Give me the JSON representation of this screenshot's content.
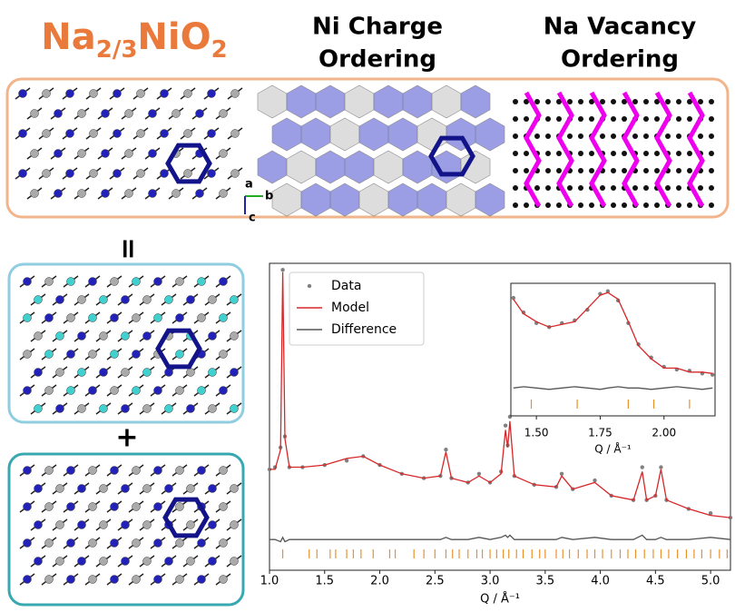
{
  "headings": {
    "formula": [
      "Na",
      "2/3",
      "NiO",
      "2"
    ],
    "charge": [
      "Ni Charge",
      "Ordering"
    ],
    "vacancy": [
      "Na Vacancy",
      "Ordering"
    ]
  },
  "symbols": {
    "equals": "=",
    "plus": "+"
  },
  "axes_labels": [
    "a",
    "b",
    "c"
  ],
  "chart_data": [
    {
      "type": "line",
      "xlabel": "Q / Å⁻¹",
      "xlim": [
        1.0,
        5.18
      ],
      "ylim": [
        -0.4,
        1.0
      ],
      "xticks": [
        {
          "value": 1.0,
          "label": "1.0"
        },
        {
          "value": 1.5,
          "label": "1.5"
        },
        {
          "value": 2.0,
          "label": "2.0"
        },
        {
          "value": 2.5,
          "label": "2.5"
        },
        {
          "value": 3.0,
          "label": "3.0"
        },
        {
          "value": 3.5,
          "label": "3.5"
        },
        {
          "value": 4.0,
          "label": "4.0"
        },
        {
          "value": 4.5,
          "label": "4.5"
        },
        {
          "value": 5.0,
          "label": "5.0"
        }
      ],
      "legend": "upper left",
      "x": [
        1.0,
        1.05,
        1.1,
        1.12,
        1.14,
        1.18,
        1.3,
        1.5,
        1.7,
        1.85,
        2.0,
        2.2,
        2.4,
        2.55,
        2.6,
        2.65,
        2.8,
        2.9,
        3.0,
        3.1,
        3.14,
        3.16,
        3.18,
        3.22,
        3.4,
        3.6,
        3.65,
        3.75,
        3.95,
        4.1,
        4.3,
        4.38,
        4.42,
        4.5,
        4.55,
        4.6,
        4.8,
        5.0,
        5.18
      ],
      "series": [
        {
          "name": "Data",
          "color": "#808080",
          "style": "markers",
          "values": [
            0.06,
            0.07,
            0.16,
            0.97,
            0.21,
            0.07,
            0.07,
            0.08,
            0.1,
            0.12,
            0.08,
            0.04,
            0.02,
            0.03,
            0.15,
            0.02,
            0.0,
            0.04,
            0.0,
            0.05,
            0.26,
            0.17,
            0.3,
            0.03,
            -0.01,
            -0.02,
            0.04,
            -0.03,
            0.01,
            -0.06,
            -0.08,
            0.07,
            -0.08,
            -0.06,
            0.07,
            -0.08,
            -0.12,
            -0.14,
            -0.16
          ]
        },
        {
          "name": "Model",
          "color": "#d62728",
          "style": "line",
          "values": [
            0.06,
            0.06,
            0.15,
            0.96,
            0.2,
            0.07,
            0.07,
            0.08,
            0.11,
            0.12,
            0.08,
            0.04,
            0.02,
            0.03,
            0.14,
            0.02,
            0.0,
            0.03,
            0.0,
            0.04,
            0.24,
            0.16,
            0.28,
            0.03,
            -0.01,
            -0.02,
            0.03,
            -0.03,
            0.0,
            -0.06,
            -0.08,
            0.05,
            -0.08,
            -0.06,
            0.06,
            -0.08,
            -0.12,
            -0.15,
            -0.16
          ]
        },
        {
          "name": "Difference",
          "color": "#555555",
          "style": "line",
          "values": [
            -0.26,
            -0.26,
            -0.27,
            -0.25,
            -0.27,
            -0.26,
            -0.26,
            -0.26,
            -0.26,
            -0.26,
            -0.26,
            -0.26,
            -0.26,
            -0.26,
            -0.25,
            -0.26,
            -0.26,
            -0.25,
            -0.26,
            -0.25,
            -0.24,
            -0.25,
            -0.24,
            -0.26,
            -0.26,
            -0.26,
            -0.25,
            -0.26,
            -0.25,
            -0.26,
            -0.26,
            -0.24,
            -0.26,
            -0.26,
            -0.25,
            -0.26,
            -0.26,
            -0.25,
            -0.26
          ]
        }
      ],
      "reflections": {
        "color": "#e8912b",
        "x": [
          1.12,
          1.36,
          1.43,
          1.55,
          1.6,
          1.7,
          1.76,
          1.83,
          1.94,
          2.09,
          2.14,
          2.31,
          2.4,
          2.5,
          2.6,
          2.66,
          2.72,
          2.8,
          2.88,
          2.93,
          3.0,
          3.06,
          3.12,
          3.17,
          3.24,
          3.3,
          3.38,
          3.45,
          3.5,
          3.6,
          3.66,
          3.72,
          3.8,
          3.88,
          3.95,
          4.02,
          4.1,
          4.18,
          4.25,
          4.32,
          4.4,
          4.48,
          4.55,
          4.62,
          4.7,
          4.78,
          4.85,
          4.92,
          5.0,
          5.08,
          5.15
        ]
      }
    },
    {
      "type": "line",
      "xlabel": "Q / Å⁻¹",
      "xlim": [
        1.4,
        2.2
      ],
      "ylim": [
        0,
        1
      ],
      "xticks": [
        {
          "value": 1.5,
          "label": "1.50"
        },
        {
          "value": 1.75,
          "label": "1.75"
        },
        {
          "value": 2.0,
          "label": "2.00"
        }
      ],
      "x": [
        1.41,
        1.45,
        1.5,
        1.55,
        1.6,
        1.65,
        1.7,
        1.75,
        1.78,
        1.82,
        1.86,
        1.9,
        1.95,
        2.0,
        2.05,
        2.1,
        2.15,
        2.19
      ],
      "series": [
        {
          "color": "#808080",
          "style": "markers",
          "values": [
            0.89,
            0.78,
            0.7,
            0.67,
            0.7,
            0.72,
            0.8,
            0.92,
            0.94,
            0.87,
            0.7,
            0.54,
            0.44,
            0.37,
            0.35,
            0.34,
            0.32,
            0.31
          ]
        },
        {
          "color": "#d62728",
          "style": "line",
          "values": [
            0.88,
            0.77,
            0.71,
            0.67,
            0.69,
            0.71,
            0.81,
            0.91,
            0.93,
            0.88,
            0.71,
            0.53,
            0.43,
            0.36,
            0.36,
            0.33,
            0.33,
            0.32
          ]
        },
        {
          "color": "#555555",
          "style": "line",
          "values": [
            0.21,
            0.22,
            0.21,
            0.2,
            0.21,
            0.22,
            0.21,
            0.2,
            0.21,
            0.22,
            0.21,
            0.21,
            0.2,
            0.21,
            0.22,
            0.21,
            0.2,
            0.21
          ]
        }
      ],
      "reflections": {
        "color": "#e8912b",
        "x": [
          1.48,
          1.66,
          1.86,
          1.96,
          2.1
        ]
      }
    }
  ]
}
